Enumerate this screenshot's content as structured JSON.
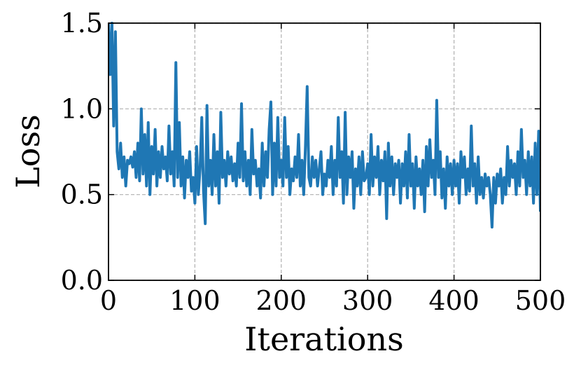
{
  "chart_data": {
    "type": "line",
    "xlabel": "Iterations",
    "ylabel": "Loss",
    "x": [
      0,
      2,
      4,
      6,
      8,
      10,
      12,
      14,
      16,
      18,
      20,
      22,
      24,
      26,
      28,
      30,
      32,
      34,
      36,
      38,
      40,
      42,
      44,
      46,
      48,
      50,
      52,
      54,
      56,
      58,
      60,
      62,
      64,
      66,
      68,
      70,
      72,
      74,
      76,
      78,
      80,
      82,
      84,
      86,
      88,
      90,
      92,
      94,
      96,
      98,
      100,
      102,
      104,
      106,
      108,
      110,
      112,
      114,
      116,
      118,
      120,
      122,
      124,
      126,
      128,
      130,
      132,
      134,
      136,
      138,
      140,
      142,
      144,
      146,
      148,
      150,
      152,
      154,
      156,
      158,
      160,
      162,
      164,
      166,
      168,
      170,
      172,
      174,
      176,
      178,
      180,
      182,
      184,
      186,
      188,
      190,
      192,
      194,
      196,
      198,
      200,
      202,
      204,
      206,
      208,
      210,
      212,
      214,
      216,
      218,
      220,
      222,
      224,
      226,
      228,
      230,
      232,
      234,
      236,
      238,
      240,
      242,
      244,
      246,
      248,
      250,
      252,
      254,
      256,
      258,
      260,
      262,
      264,
      266,
      268,
      270,
      272,
      274,
      276,
      278,
      280,
      282,
      284,
      286,
      288,
      290,
      292,
      294,
      296,
      298,
      300,
      302,
      304,
      306,
      308,
      310,
      312,
      314,
      316,
      318,
      320,
      322,
      324,
      326,
      328,
      330,
      332,
      334,
      336,
      338,
      340,
      342,
      344,
      346,
      348,
      350,
      352,
      354,
      356,
      358,
      360,
      362,
      364,
      366,
      368,
      370,
      372,
      374,
      376,
      378,
      380,
      382,
      384,
      386,
      388,
      390,
      392,
      394,
      396,
      398,
      400,
      402,
      404,
      406,
      408,
      410,
      412,
      414,
      416,
      418,
      420,
      422,
      424,
      426,
      428,
      430,
      432,
      434,
      436,
      438,
      440,
      442,
      444,
      446,
      448,
      450,
      452,
      454,
      456,
      458,
      460,
      462,
      464,
      466,
      468,
      470,
      472,
      474,
      476,
      478,
      480,
      482,
      484,
      486,
      488,
      490,
      492,
      494,
      496,
      498,
      500
    ],
    "series": [
      {
        "name": "Loss",
        "color": "#1f77b4",
        "values": [
          1.5,
          1.2,
          1.5,
          0.9,
          1.45,
          0.75,
          0.65,
          0.8,
          0.6,
          0.72,
          0.55,
          0.7,
          0.68,
          0.72,
          0.66,
          0.75,
          0.6,
          0.8,
          0.58,
          1.0,
          0.62,
          0.85,
          0.55,
          0.92,
          0.5,
          0.78,
          0.62,
          0.88,
          0.55,
          0.75,
          0.6,
          0.78,
          0.65,
          0.72,
          0.58,
          0.9,
          0.62,
          0.75,
          0.55,
          1.27,
          0.6,
          0.92,
          0.55,
          0.72,
          0.48,
          0.7,
          0.6,
          0.75,
          0.52,
          0.6,
          0.45,
          0.78,
          0.5,
          0.65,
          0.95,
          0.52,
          0.33,
          1.02,
          0.55,
          0.7,
          0.5,
          0.85,
          0.55,
          0.75,
          0.45,
          0.98,
          0.6,
          0.7,
          0.55,
          0.75,
          0.62,
          0.72,
          0.58,
          0.68,
          0.55,
          0.8,
          0.6,
          1.03,
          0.58,
          0.75,
          0.55,
          0.7,
          0.5,
          0.88,
          0.62,
          0.7,
          0.55,
          0.65,
          0.48,
          0.8,
          0.55,
          0.75,
          0.6,
          0.88,
          1.04,
          0.5,
          0.8,
          0.55,
          0.95,
          0.6,
          0.7,
          0.55,
          0.95,
          0.6,
          0.78,
          0.5,
          0.65,
          0.58,
          0.72,
          0.6,
          0.85,
          0.55,
          0.7,
          0.5,
          0.78,
          1.13,
          0.6,
          0.55,
          0.72,
          0.6,
          0.7,
          0.55,
          0.65,
          0.75,
          0.5,
          0.62,
          0.55,
          0.7,
          0.6,
          0.78,
          0.5,
          0.7,
          0.55,
          0.95,
          0.6,
          0.75,
          0.45,
          0.98,
          0.5,
          0.72,
          0.6,
          0.75,
          0.42,
          0.65,
          0.55,
          0.72,
          0.5,
          0.75,
          0.58,
          0.6,
          0.68,
          0.5,
          0.85,
          0.55,
          0.72,
          0.6,
          0.78,
          0.5,
          0.7,
          0.58,
          0.75,
          0.36,
          0.8,
          0.55,
          0.72,
          0.5,
          0.68,
          0.6,
          0.7,
          0.45,
          0.68,
          0.55,
          0.75,
          0.48,
          0.85,
          0.55,
          0.68,
          0.42,
          0.72,
          0.55,
          0.65,
          0.5,
          0.7,
          0.4,
          0.78,
          0.55,
          0.82,
          0.6,
          0.7,
          0.5,
          1.05,
          0.6,
          0.75,
          0.48,
          0.65,
          0.42,
          0.72,
          0.55,
          0.68,
          0.5,
          0.7,
          0.55,
          0.68,
          0.45,
          0.75,
          0.6,
          0.72,
          0.5,
          0.65,
          0.52,
          0.9,
          0.55,
          0.68,
          0.45,
          0.72,
          0.5,
          0.6,
          0.48,
          0.62,
          0.55,
          0.6,
          0.5,
          0.31,
          0.6,
          0.45,
          0.62,
          0.55,
          0.65,
          0.45,
          0.6,
          0.5,
          0.78,
          0.55,
          0.7,
          0.6,
          0.68,
          0.5,
          0.75,
          0.55,
          0.88,
          0.6,
          0.7,
          0.5,
          0.75,
          0.55,
          0.72,
          0.45,
          0.8,
          0.5,
          0.87,
          0.4
        ]
      }
    ],
    "xlim": [
      0,
      500
    ],
    "xticks": [
      0,
      100,
      200,
      300,
      400,
      500
    ],
    "ylim": [
      0,
      1.5
    ],
    "yticks": [
      {
        "value": 0,
        "label": "0.0"
      },
      {
        "value": 0.5,
        "label": "0.5"
      },
      {
        "value": 1,
        "label": "1.0"
      },
      {
        "value": 1.5,
        "label": "1.5"
      }
    ],
    "grid": true
  }
}
